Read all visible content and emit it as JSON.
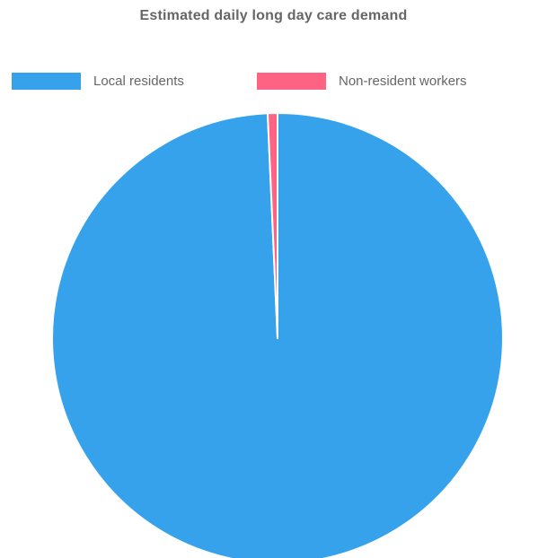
{
  "chart_data": {
    "type": "pie",
    "title": "Estimated daily long day care demand",
    "legend_position": "top",
    "categories": [
      "Local residents",
      "Non-resident workers"
    ],
    "values": [
      99.3,
      0.7
    ],
    "colors": [
      "#36A2EB",
      "#FF6384"
    ],
    "slice_border_color": "#ffffff"
  }
}
